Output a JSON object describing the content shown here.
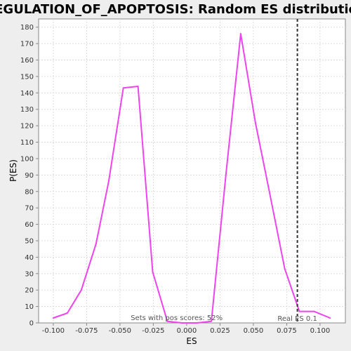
{
  "chart_data": {
    "type": "line",
    "title": "REGULATION_OF_APOPTOSIS: Random ES distribution",
    "xlabel": "ES",
    "ylabel": "P(ES)",
    "xlim": [
      -0.111,
      0.119
    ],
    "ylim": [
      0,
      185
    ],
    "xticks": [
      -0.1,
      -0.075,
      -0.05,
      -0.025,
      0.0,
      0.025,
      0.05,
      0.075,
      0.1
    ],
    "xtick_labels": [
      "-0.100",
      "-0.075",
      "-0.050",
      "-0.025",
      "0.000",
      "0.025",
      "0.050",
      "0.075",
      "0.100"
    ],
    "yticks": [
      0,
      10,
      20,
      30,
      40,
      50,
      60,
      70,
      80,
      90,
      100,
      110,
      120,
      130,
      140,
      150,
      160,
      170,
      180
    ],
    "grid": true,
    "series": [
      {
        "color": "#ee44ee",
        "x": [
          -0.1,
          -0.0895,
          -0.079,
          -0.068,
          -0.0585,
          -0.0475,
          -0.0365,
          -0.0255,
          -0.0145,
          -0.0035,
          0.0075,
          0.0185,
          0.0295,
          0.0405,
          0.0515,
          0.0625,
          0.0735,
          0.0845,
          0.0955,
          0.1075
        ],
        "values": [
          3,
          6,
          20,
          48,
          86,
          143,
          144,
          31,
          1,
          0,
          0,
          1,
          91,
          176,
          122,
          78,
          33,
          7,
          7,
          3
        ]
      }
    ],
    "reference_line": {
      "x": 0.083,
      "label": "Real ES 0.1",
      "style": "dashed",
      "color": "#333333"
    },
    "annotation": "Sets with pos scores: 52%"
  }
}
